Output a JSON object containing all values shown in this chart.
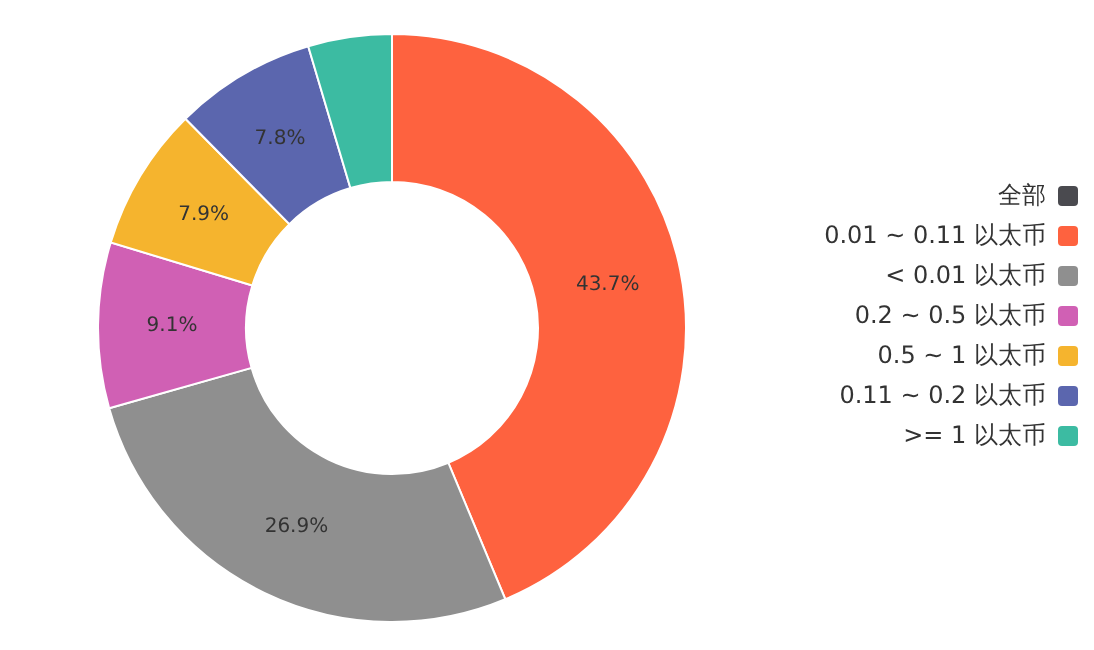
{
  "chart_data": {
    "type": "donut",
    "categories": [
      "全部",
      "0.01 ~ 0.11 以太币",
      "< 0.01 以太币",
      "0.2 ~ 0.5 以太币",
      "0.5 ~ 1 以太币",
      "0.11 ~ 0.2 以太币",
      ">= 1 以太币"
    ],
    "values": [
      0,
      43.7,
      26.9,
      9.1,
      7.9,
      7.8,
      4.6
    ],
    "colors": [
      "#4a4a4f",
      "#fe623f",
      "#8f8f8f",
      "#d060b4",
      "#f5b42e",
      "#5b66ae",
      "#3cbba2"
    ],
    "value_labels": [
      null,
      "43.7%",
      "26.9%",
      "9.1%",
      "7.9%",
      "7.8%",
      null
    ],
    "legend": "right"
  }
}
